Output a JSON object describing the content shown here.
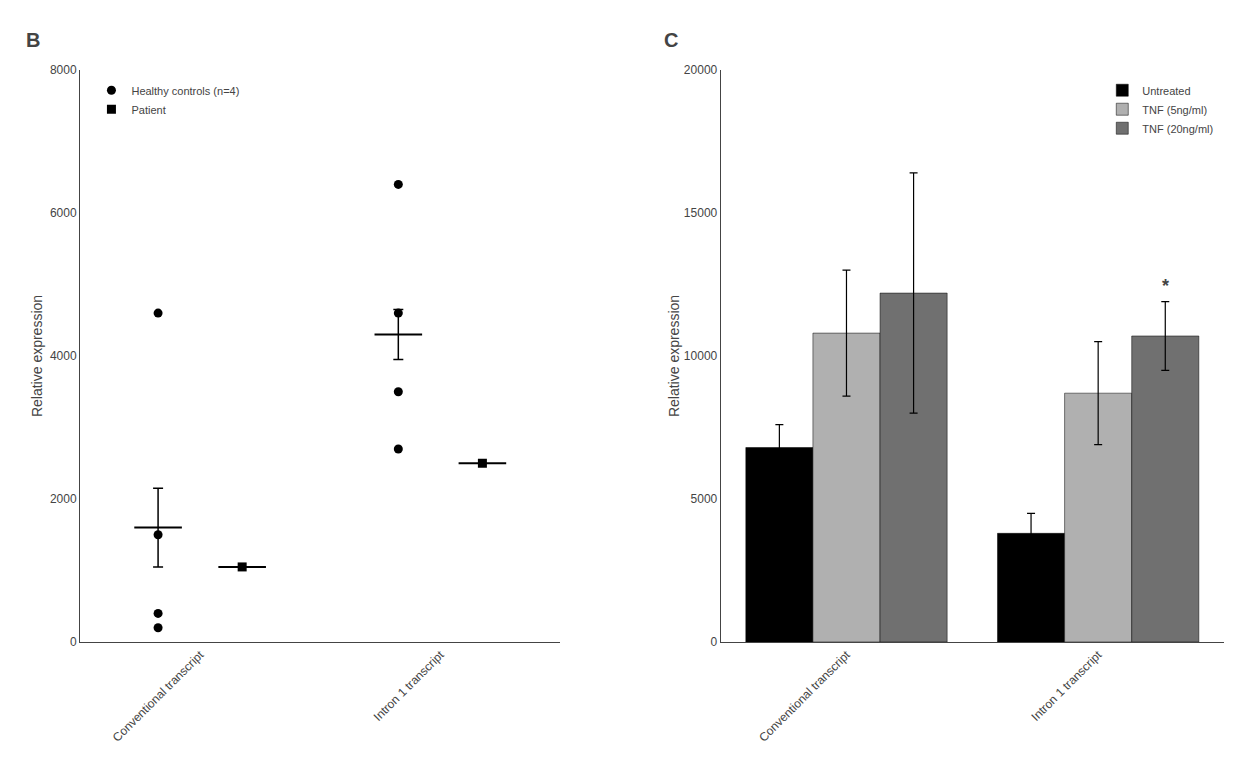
{
  "chart_data": [
    {
      "type": "scatter",
      "title": "B",
      "categories": [
        "Conventional transcript",
        "Intron 1 transcript"
      ],
      "ylabel": "Relative expression",
      "ylim": [
        0,
        8000
      ],
      "yticks": [
        0,
        2000,
        4000,
        6000,
        8000
      ],
      "grid": false,
      "legend": "upper left",
      "series": [
        {
          "name": "Healthy controls (n=4)",
          "color": "#000000",
          "marker": "circle",
          "values": [
            [
              4600,
              200,
              400,
              1500
            ],
            [
              6400,
              2700,
              3500,
              4600
            ]
          ],
          "mean": [
            1600,
            4300
          ],
          "error": [
            550,
            350
          ]
        },
        {
          "name": "Patient",
          "color": "#000000",
          "marker": "square",
          "values": [
            1050,
            2500
          ]
        }
      ]
    },
    {
      "type": "bar",
      "title": "C",
      "categories": [
        "Conventional transcript",
        "Intron 1 transcript"
      ],
      "ylabel": "Relative expression",
      "ylim": [
        0,
        20000
      ],
      "yticks": [
        0,
        5000,
        10000,
        15000,
        20000
      ],
      "grid": false,
      "legend": "upper right",
      "series": [
        {
          "name": "Untreated",
          "color": "#000000",
          "values": [
            6800,
            3800
          ],
          "error": [
            800,
            700
          ]
        },
        {
          "name": "TNF (5ng/ml)",
          "color": "#b0b0b0",
          "values": [
            10800,
            8700
          ],
          "error": [
            2200,
            1800
          ]
        },
        {
          "name": "TNF (20ng/ml)",
          "color": "#707070",
          "values": [
            12200,
            10700
          ],
          "error": [
            4200,
            1200
          ]
        }
      ],
      "annotations": [
        {
          "text": "*",
          "category": "Intron 1 transcript",
          "series": "TNF (20ng/ml)"
        }
      ]
    }
  ]
}
